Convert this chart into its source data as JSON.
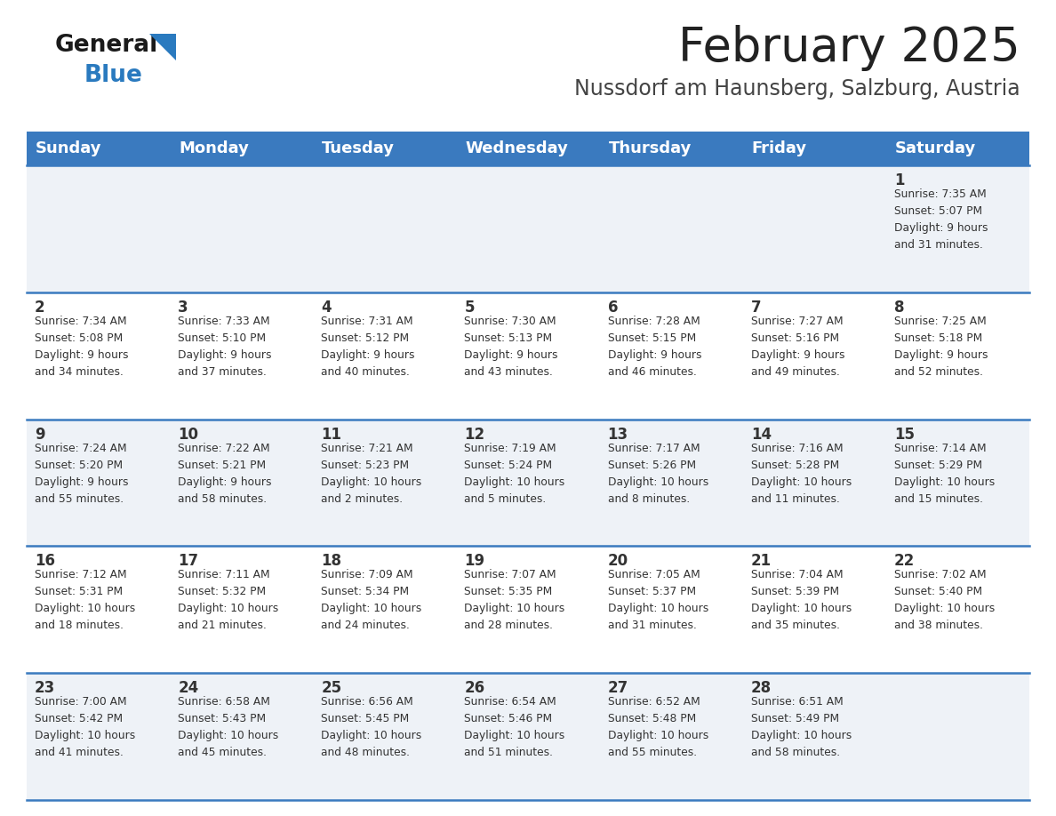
{
  "title": "February 2025",
  "subtitle": "Nussdorf am Haunsberg, Salzburg, Austria",
  "days_of_week": [
    "Sunday",
    "Monday",
    "Tuesday",
    "Wednesday",
    "Thursday",
    "Friday",
    "Saturday"
  ],
  "header_bg": "#3a7abf",
  "header_text": "#ffffff",
  "row_bg_odd": "#eef2f7",
  "row_bg_even": "#ffffff",
  "cell_text_color": "#333333",
  "day_num_color": "#333333",
  "divider_color": "#3a7abf",
  "title_color": "#222222",
  "subtitle_color": "#444444",
  "logo_general_color": "#1a1a1a",
  "logo_blue_color": "#2a7abf",
  "weeks": [
    [
      {
        "day": "",
        "info": ""
      },
      {
        "day": "",
        "info": ""
      },
      {
        "day": "",
        "info": ""
      },
      {
        "day": "",
        "info": ""
      },
      {
        "day": "",
        "info": ""
      },
      {
        "day": "",
        "info": ""
      },
      {
        "day": "1",
        "info": "Sunrise: 7:35 AM\nSunset: 5:07 PM\nDaylight: 9 hours\nand 31 minutes."
      }
    ],
    [
      {
        "day": "2",
        "info": "Sunrise: 7:34 AM\nSunset: 5:08 PM\nDaylight: 9 hours\nand 34 minutes."
      },
      {
        "day": "3",
        "info": "Sunrise: 7:33 AM\nSunset: 5:10 PM\nDaylight: 9 hours\nand 37 minutes."
      },
      {
        "day": "4",
        "info": "Sunrise: 7:31 AM\nSunset: 5:12 PM\nDaylight: 9 hours\nand 40 minutes."
      },
      {
        "day": "5",
        "info": "Sunrise: 7:30 AM\nSunset: 5:13 PM\nDaylight: 9 hours\nand 43 minutes."
      },
      {
        "day": "6",
        "info": "Sunrise: 7:28 AM\nSunset: 5:15 PM\nDaylight: 9 hours\nand 46 minutes."
      },
      {
        "day": "7",
        "info": "Sunrise: 7:27 AM\nSunset: 5:16 PM\nDaylight: 9 hours\nand 49 minutes."
      },
      {
        "day": "8",
        "info": "Sunrise: 7:25 AM\nSunset: 5:18 PM\nDaylight: 9 hours\nand 52 minutes."
      }
    ],
    [
      {
        "day": "9",
        "info": "Sunrise: 7:24 AM\nSunset: 5:20 PM\nDaylight: 9 hours\nand 55 minutes."
      },
      {
        "day": "10",
        "info": "Sunrise: 7:22 AM\nSunset: 5:21 PM\nDaylight: 9 hours\nand 58 minutes."
      },
      {
        "day": "11",
        "info": "Sunrise: 7:21 AM\nSunset: 5:23 PM\nDaylight: 10 hours\nand 2 minutes."
      },
      {
        "day": "12",
        "info": "Sunrise: 7:19 AM\nSunset: 5:24 PM\nDaylight: 10 hours\nand 5 minutes."
      },
      {
        "day": "13",
        "info": "Sunrise: 7:17 AM\nSunset: 5:26 PM\nDaylight: 10 hours\nand 8 minutes."
      },
      {
        "day": "14",
        "info": "Sunrise: 7:16 AM\nSunset: 5:28 PM\nDaylight: 10 hours\nand 11 minutes."
      },
      {
        "day": "15",
        "info": "Sunrise: 7:14 AM\nSunset: 5:29 PM\nDaylight: 10 hours\nand 15 minutes."
      }
    ],
    [
      {
        "day": "16",
        "info": "Sunrise: 7:12 AM\nSunset: 5:31 PM\nDaylight: 10 hours\nand 18 minutes."
      },
      {
        "day": "17",
        "info": "Sunrise: 7:11 AM\nSunset: 5:32 PM\nDaylight: 10 hours\nand 21 minutes."
      },
      {
        "day": "18",
        "info": "Sunrise: 7:09 AM\nSunset: 5:34 PM\nDaylight: 10 hours\nand 24 minutes."
      },
      {
        "day": "19",
        "info": "Sunrise: 7:07 AM\nSunset: 5:35 PM\nDaylight: 10 hours\nand 28 minutes."
      },
      {
        "day": "20",
        "info": "Sunrise: 7:05 AM\nSunset: 5:37 PM\nDaylight: 10 hours\nand 31 minutes."
      },
      {
        "day": "21",
        "info": "Sunrise: 7:04 AM\nSunset: 5:39 PM\nDaylight: 10 hours\nand 35 minutes."
      },
      {
        "day": "22",
        "info": "Sunrise: 7:02 AM\nSunset: 5:40 PM\nDaylight: 10 hours\nand 38 minutes."
      }
    ],
    [
      {
        "day": "23",
        "info": "Sunrise: 7:00 AM\nSunset: 5:42 PM\nDaylight: 10 hours\nand 41 minutes."
      },
      {
        "day": "24",
        "info": "Sunrise: 6:58 AM\nSunset: 5:43 PM\nDaylight: 10 hours\nand 45 minutes."
      },
      {
        "day": "25",
        "info": "Sunrise: 6:56 AM\nSunset: 5:45 PM\nDaylight: 10 hours\nand 48 minutes."
      },
      {
        "day": "26",
        "info": "Sunrise: 6:54 AM\nSunset: 5:46 PM\nDaylight: 10 hours\nand 51 minutes."
      },
      {
        "day": "27",
        "info": "Sunrise: 6:52 AM\nSunset: 5:48 PM\nDaylight: 10 hours\nand 55 minutes."
      },
      {
        "day": "28",
        "info": "Sunrise: 6:51 AM\nSunset: 5:49 PM\nDaylight: 10 hours\nand 58 minutes."
      },
      {
        "day": "",
        "info": ""
      }
    ]
  ]
}
